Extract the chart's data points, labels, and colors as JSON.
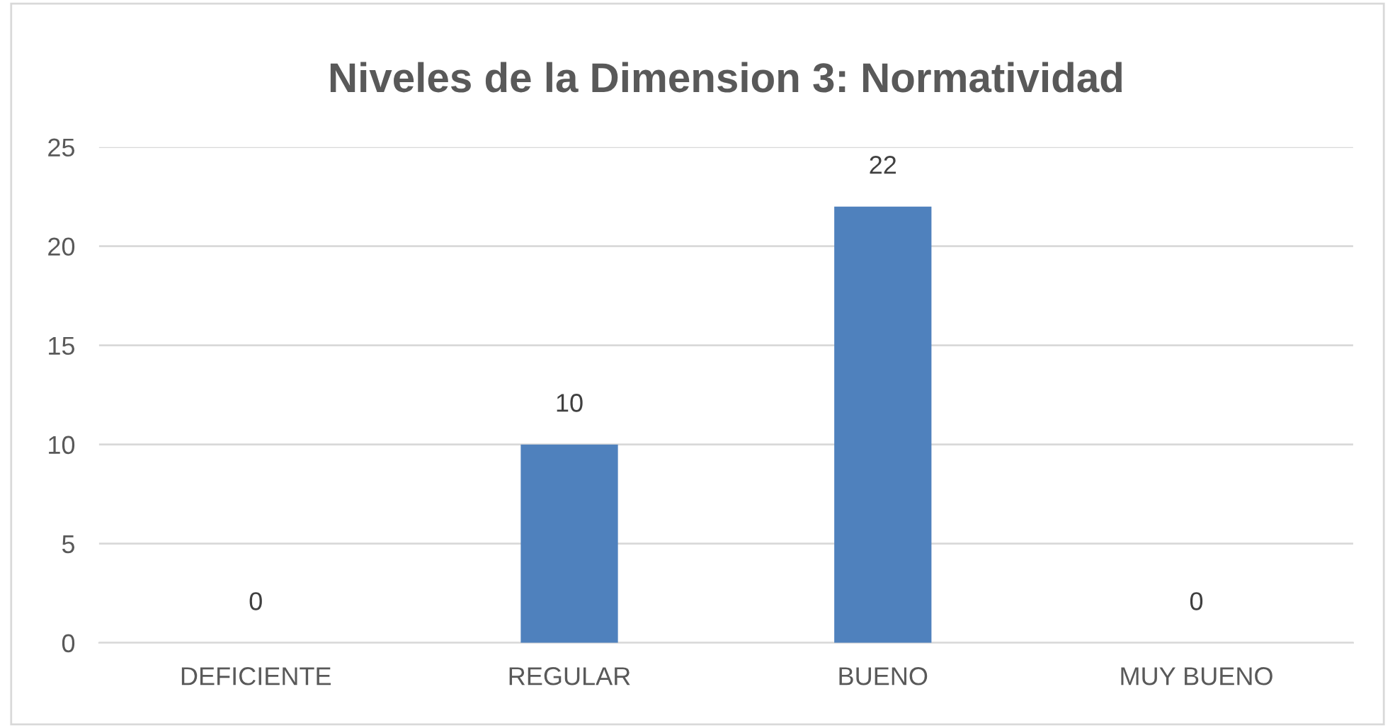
{
  "chart_data": {
    "type": "bar",
    "title": "Niveles de la Dimension 3: Normatividad",
    "categories": [
      "DEFICIENTE",
      "REGULAR",
      "BUENO",
      "MUY BUENO"
    ],
    "values": [
      0,
      10,
      22,
      0
    ],
    "color": "#4f81bd",
    "ylim": [
      0,
      25
    ],
    "yticks": [
      0,
      5,
      10,
      15,
      20,
      25
    ],
    "grid": "y",
    "data_labels": true
  }
}
